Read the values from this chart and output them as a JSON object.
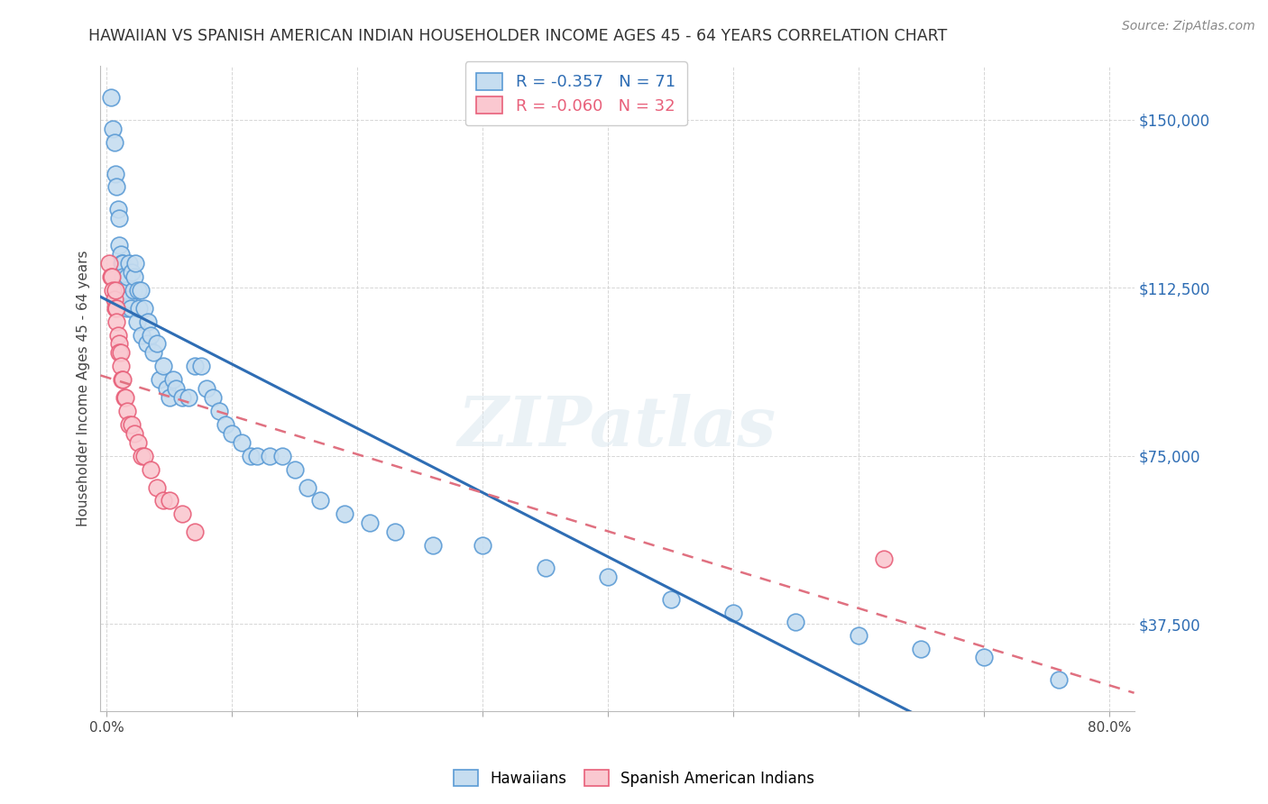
{
  "title": "HAWAIIAN VS SPANISH AMERICAN INDIAN HOUSEHOLDER INCOME AGES 45 - 64 YEARS CORRELATION CHART",
  "source": "Source: ZipAtlas.com",
  "ylabel": "Householder Income Ages 45 - 64 years",
  "ytick_labels": [
    "$37,500",
    "$75,000",
    "$112,500",
    "$150,000"
  ],
  "ytick_values": [
    37500,
    75000,
    112500,
    150000
  ],
  "ylim": [
    18000,
    162000
  ],
  "xlim": [
    -0.005,
    0.82
  ],
  "legend_entry1": "R = -0.357   N = 71",
  "legend_entry2": "R = -0.060   N = 32",
  "legend_label1": "Hawaiians",
  "legend_label2": "Spanish American Indians",
  "R1": -0.357,
  "N1": 71,
  "R2": -0.06,
  "N2": 32,
  "blue_fill": "#c6ddf0",
  "blue_edge": "#5b9bd5",
  "pink_fill": "#fac8d0",
  "pink_edge": "#e8607a",
  "blue_line": "#2e6db4",
  "pink_line": "#e07080",
  "watermark": "ZIPatlas",
  "hawaiians_x": [
    0.003,
    0.005,
    0.006,
    0.007,
    0.008,
    0.009,
    0.01,
    0.01,
    0.011,
    0.012,
    0.013,
    0.013,
    0.014,
    0.015,
    0.016,
    0.016,
    0.017,
    0.018,
    0.019,
    0.02,
    0.021,
    0.022,
    0.023,
    0.024,
    0.025,
    0.026,
    0.027,
    0.028,
    0.03,
    0.032,
    0.033,
    0.035,
    0.037,
    0.04,
    0.042,
    0.045,
    0.048,
    0.05,
    0.053,
    0.055,
    0.06,
    0.065,
    0.07,
    0.075,
    0.08,
    0.085,
    0.09,
    0.095,
    0.1,
    0.108,
    0.115,
    0.12,
    0.13,
    0.14,
    0.15,
    0.16,
    0.17,
    0.19,
    0.21,
    0.23,
    0.26,
    0.3,
    0.35,
    0.4,
    0.45,
    0.5,
    0.55,
    0.6,
    0.65,
    0.7,
    0.76
  ],
  "hawaiians_y": [
    155000,
    148000,
    145000,
    138000,
    135000,
    130000,
    128000,
    122000,
    120000,
    118000,
    118000,
    115000,
    112000,
    112000,
    115000,
    108000,
    110000,
    118000,
    108000,
    116000,
    112000,
    115000,
    118000,
    105000,
    112000,
    108000,
    112000,
    102000,
    108000,
    100000,
    105000,
    102000,
    98000,
    100000,
    92000,
    95000,
    90000,
    88000,
    92000,
    90000,
    88000,
    88000,
    95000,
    95000,
    90000,
    88000,
    85000,
    82000,
    80000,
    78000,
    75000,
    75000,
    75000,
    75000,
    72000,
    68000,
    65000,
    62000,
    60000,
    58000,
    55000,
    55000,
    50000,
    48000,
    43000,
    40000,
    38000,
    35000,
    32000,
    30000,
    25000
  ],
  "spanish_x": [
    0.002,
    0.003,
    0.004,
    0.005,
    0.006,
    0.007,
    0.007,
    0.008,
    0.008,
    0.009,
    0.01,
    0.01,
    0.011,
    0.011,
    0.012,
    0.013,
    0.014,
    0.015,
    0.016,
    0.018,
    0.02,
    0.022,
    0.025,
    0.028,
    0.03,
    0.035,
    0.04,
    0.045,
    0.05,
    0.06,
    0.07,
    0.62
  ],
  "spanish_y": [
    118000,
    115000,
    115000,
    112000,
    110000,
    112000,
    108000,
    108000,
    105000,
    102000,
    100000,
    98000,
    98000,
    95000,
    92000,
    92000,
    88000,
    88000,
    85000,
    82000,
    82000,
    80000,
    78000,
    75000,
    75000,
    72000,
    68000,
    65000,
    65000,
    62000,
    58000,
    52000
  ]
}
